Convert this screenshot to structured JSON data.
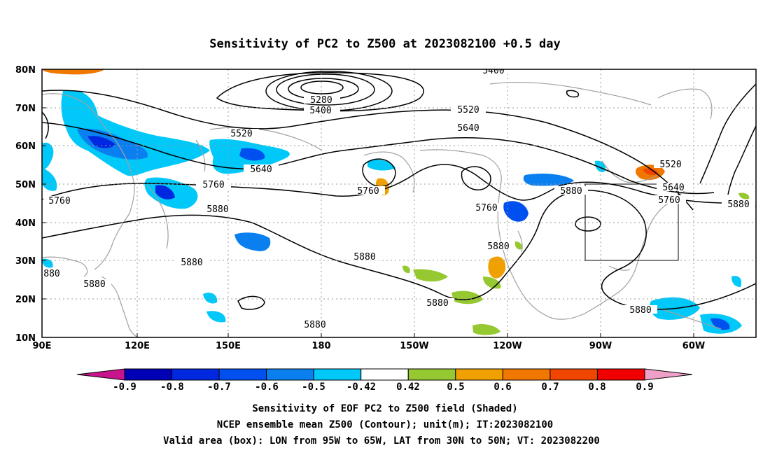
{
  "figure": {
    "title": "Sensitivity of PC2 to Z500 at 2023082100 +0.5 day"
  },
  "map": {
    "lat_labels": [
      "80N",
      "70N",
      "60N",
      "50N",
      "40N",
      "30N",
      "20N",
      "10N"
    ],
    "lon_labels": [
      "90E",
      "120E",
      "150E",
      "180",
      "150W",
      "120W",
      "90W",
      "60W"
    ],
    "contour_labels": [
      "5400",
      "5280",
      "5400",
      "5520",
      "5640",
      "5520",
      "5640",
      "5760",
      "5760",
      "5880",
      "5760",
      "5880",
      "5760",
      "5880",
      "5520",
      "5640",
      "5760",
      "5880",
      "5880",
      "880",
      "5880",
      "5880",
      "5880",
      "5880",
      "5880"
    ],
    "box": {
      "lon_range": [
        "95W",
        "65W"
      ],
      "lat_range": [
        "30N",
        "50N"
      ]
    }
  },
  "colorbar": {
    "levels": [
      "-0.9",
      "-0.8",
      "-0.7",
      "-0.6",
      "-0.5",
      "-0.42",
      "0.42",
      "0.5",
      "0.6",
      "0.7",
      "0.8",
      "0.9"
    ],
    "colors": [
      "#0000b4",
      "#0028e0",
      "#0050f0",
      "#0a80f0",
      "#00c8f8",
      "#ffffff",
      "#96c832",
      "#f0a000",
      "#f07800",
      "#f04600",
      "#f00000"
    ],
    "under_color": "#c8148c",
    "over_color": "#f0a0c8"
  },
  "captions": [
    "Sensitivity of EOF PC2 to Z500 field (Shaded)",
    "NCEP ensemble mean Z500 (Contour); unit(m); IT:2023082100",
    "Valid area (box): LON from 95W to 65W, LAT from 30N to 50N; VT: 2023082200"
  ]
}
